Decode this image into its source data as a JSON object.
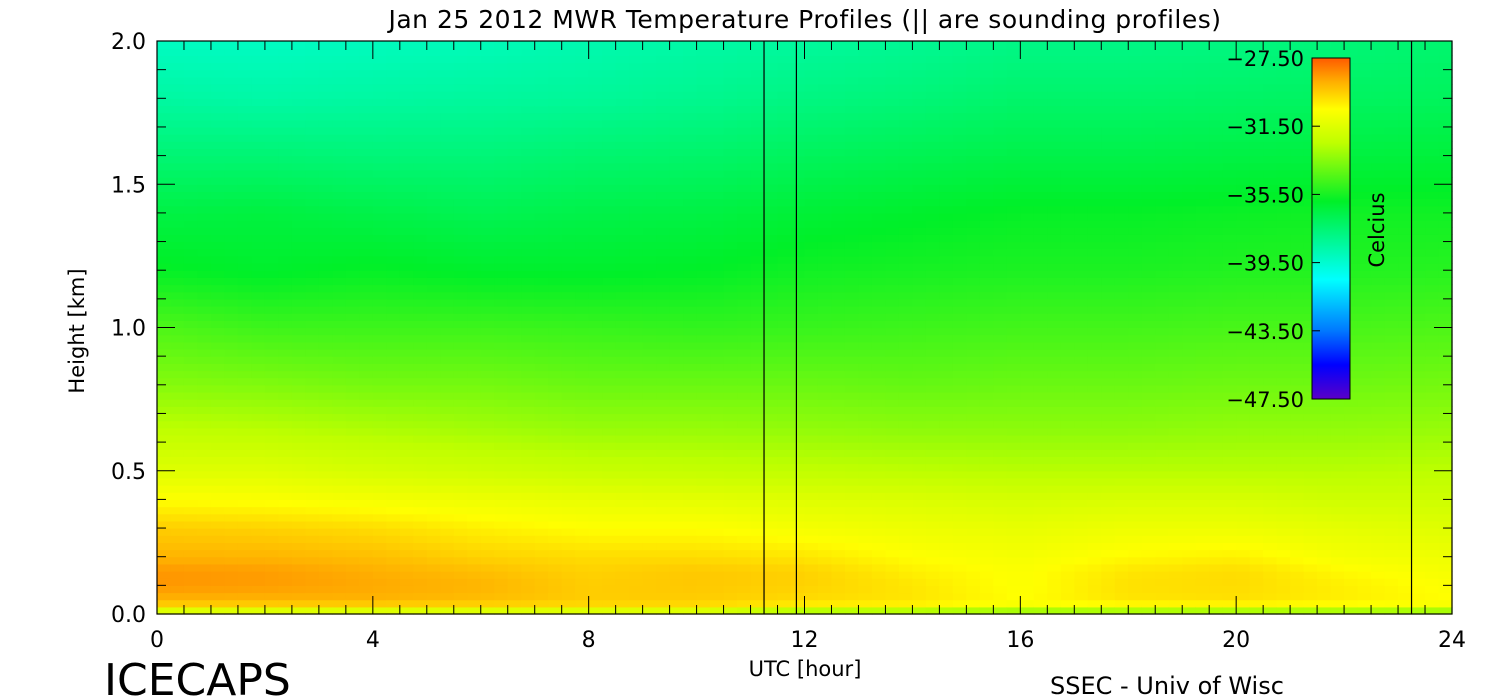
{
  "chart_data": {
    "type": "heatmap",
    "title": "Jan 25 2012 MWR Temperature Profiles (|| are sounding profiles)",
    "xlabel": "UTC [hour]",
    "ylabel": "Height [km]",
    "xlim": [
      0,
      24
    ],
    "ylim": [
      0,
      2.0
    ],
    "xticks": [
      "0",
      "4",
      "8",
      "12",
      "16",
      "20",
      "24"
    ],
    "yticks": [
      "0.0",
      "0.5",
      "1.0",
      "1.5",
      "2.0"
    ],
    "colorbar": {
      "label": "Celcius",
      "range": [
        -47.5,
        -27.5
      ],
      "ticks": [
        "-27.50",
        "-31.50",
        "-35.50",
        "-39.50",
        "-43.50",
        "-47.50"
      ]
    },
    "sounding_times": [
      11.25,
      11.85,
      23.25
    ],
    "profile_heights_km": [
      0.0,
      0.02,
      0.05,
      0.1,
      0.15,
      0.2,
      0.3,
      0.4,
      0.5,
      0.65,
      0.8,
      1.0,
      1.2,
      1.4,
      1.6,
      1.8,
      2.0
    ],
    "profiles": [
      {
        "utc": 0,
        "temps": [
          -34,
          -30,
          -29,
          -28.5,
          -28.5,
          -29,
          -29.5,
          -30.5,
          -31.5,
          -32.5,
          -33.5,
          -34.5,
          -35.8,
          -36.5,
          -37.5,
          -38.5,
          -39.2
        ]
      },
      {
        "utc": 2,
        "temps": [
          -34,
          -30,
          -29,
          -28.6,
          -28.6,
          -29,
          -29.6,
          -30.6,
          -31.5,
          -32.6,
          -33.6,
          -34.8,
          -36.0,
          -36.4,
          -37.5,
          -38.6,
          -39.2
        ]
      },
      {
        "utc": 4,
        "temps": [
          -34,
          -30,
          -29,
          -28.8,
          -28.9,
          -29.2,
          -29.8,
          -30.8,
          -31.8,
          -32.8,
          -33.8,
          -34.8,
          -35.8,
          -36.6,
          -37.6,
          -38.5,
          -39.1
        ]
      },
      {
        "utc": 6,
        "temps": [
          -34,
          -30,
          -29.2,
          -29.0,
          -29.2,
          -29.6,
          -30.2,
          -31.0,
          -32.0,
          -33.0,
          -33.8,
          -34.8,
          -36.0,
          -36.8,
          -37.6,
          -38.4,
          -39.0
        ]
      },
      {
        "utc": 8,
        "temps": [
          -34,
          -30,
          -29.5,
          -29.5,
          -29.6,
          -29.8,
          -30.5,
          -31.2,
          -32.2,
          -33.2,
          -34.0,
          -34.9,
          -36.0,
          -36.6,
          -37.4,
          -38.3,
          -38.8
        ]
      },
      {
        "utc": 10,
        "temps": [
          -34,
          -30,
          -29.5,
          -29.4,
          -29.4,
          -29.8,
          -30.5,
          -31.3,
          -32.3,
          -33.2,
          -34.0,
          -35.0,
          -35.9,
          -36.5,
          -37.3,
          -38.1,
          -38.6
        ]
      },
      {
        "utc": 12,
        "temps": [
          -36,
          -30.5,
          -29.8,
          -29.6,
          -29.6,
          -30.0,
          -30.8,
          -31.5,
          -32.4,
          -33.3,
          -34.0,
          -34.9,
          -35.6,
          -36.2,
          -37.0,
          -37.8,
          -38.4
        ]
      },
      {
        "utc": 14,
        "temps": [
          -36,
          -30.5,
          -30.0,
          -30.0,
          -30.2,
          -30.5,
          -31.0,
          -31.6,
          -32.5,
          -33.4,
          -34.1,
          -34.8,
          -35.5,
          -36.0,
          -36.8,
          -37.6,
          -38.2
        ]
      },
      {
        "utc": 16,
        "temps": [
          -36,
          -31.0,
          -30.5,
          -30.6,
          -30.6,
          -30.8,
          -31.2,
          -31.8,
          -32.6,
          -33.4,
          -34.0,
          -34.7,
          -35.4,
          -35.8,
          -36.6,
          -37.3,
          -37.9
        ]
      },
      {
        "utc": 18,
        "temps": [
          -36,
          -30.8,
          -30.0,
          -29.9,
          -30.0,
          -30.4,
          -31.0,
          -31.7,
          -32.6,
          -33.4,
          -34.0,
          -34.7,
          -35.4,
          -35.8,
          -36.6,
          -37.3,
          -37.9
        ]
      },
      {
        "utc": 20,
        "temps": [
          -36,
          -30.8,
          -29.9,
          -29.8,
          -29.8,
          -30.2,
          -31.0,
          -31.7,
          -32.6,
          -33.3,
          -33.9,
          -34.6,
          -35.3,
          -35.7,
          -36.5,
          -37.2,
          -37.8
        ]
      },
      {
        "utc": 22,
        "temps": [
          -36,
          -30.8,
          -30.2,
          -30.2,
          -30.4,
          -30.8,
          -31.3,
          -32.0,
          -32.6,
          -33.3,
          -33.9,
          -34.6,
          -35.3,
          -35.6,
          -36.4,
          -37.1,
          -37.6
        ]
      },
      {
        "utc": 24,
        "temps": [
          -36,
          -31.0,
          -30.5,
          -30.6,
          -30.8,
          -31.0,
          -31.5,
          -32.0,
          -32.5,
          -33.2,
          -33.8,
          -34.5,
          -35.2,
          -35.6,
          -36.3,
          -37.0,
          -37.4
        ]
      }
    ]
  },
  "footer": {
    "left": "ICECAPS",
    "right": "SSEC - Univ of Wisc"
  },
  "colors": {
    "background": "#ffffff",
    "axis": "#000000"
  }
}
